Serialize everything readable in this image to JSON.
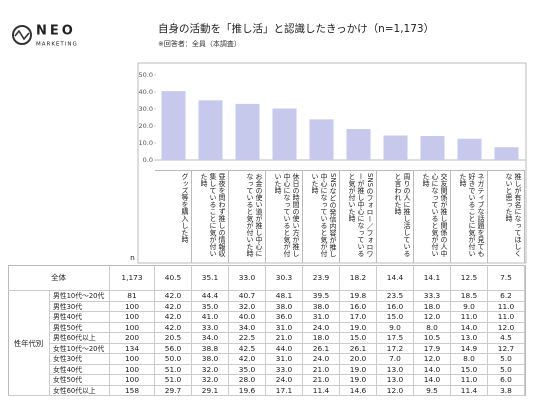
{
  "logo": {
    "name": "NEO",
    "sub": "MARKETING"
  },
  "chart_data": {
    "type": "bar",
    "title": "自身の活動を「推し活」と認識したきっかけ（n=1,173）",
    "subtitle": "※回答者：全員（本調査）",
    "categories": [
      "グッズ等を購入した時",
      "昼夜を問わず推しの情報収集していることに気が付いた時",
      "お金の使い道が推し中心になっていると気が付いた時",
      "休日の時間の使い方が推し中心になっていると気が付いた時",
      "SNSなどの発信内容が推し中心になっていると気が付いた時",
      "SNSのフォロー／フォロワーが推し中心になっていると気が付いた時",
      "周りの人に推し活していると言われた時",
      "交友関係が推し関係の人中心になっていると気が付いた時",
      "ネガティブな話題を見ても好きでいることに気が付いた時",
      "推しが有名になってほしくないと思った時"
    ],
    "values": [
      40.5,
      35.1,
      33.0,
      30.3,
      23.9,
      18.2,
      14.4,
      14.1,
      12.5,
      7.5
    ],
    "value_labels": [
      "40.5",
      "35.1",
      "33.0",
      "30.3",
      "23.9",
      "18.2",
      "14.4",
      "14.1",
      "12.5",
      "7.5"
    ],
    "color": "#c6c9ec",
    "ylim": [
      0,
      50
    ],
    "yticks": [
      {
        "value": 0,
        "label": "0.0"
      },
      {
        "value": 10,
        "label": "10.0"
      },
      {
        "value": 20,
        "label": "20.0"
      },
      {
        "value": 30,
        "label": "30.0"
      },
      {
        "value": 40,
        "label": "40.0"
      },
      {
        "value": 50,
        "label": "50.0"
      }
    ]
  },
  "table": {
    "n_header": "n",
    "total_label": "全体",
    "total_n": "1,173",
    "group_label": "性年代別",
    "rows": [
      {
        "label": "男性10代～20代",
        "n": "81",
        "values": [
          "42.0",
          "44.4",
          "40.7",
          "48.1",
          "39.5",
          "19.8",
          "23.5",
          "33.3",
          "18.5",
          "6.2"
        ]
      },
      {
        "label": "男性30代",
        "n": "100",
        "values": [
          "42.0",
          "35.0",
          "32.0",
          "38.0",
          "38.0",
          "16.0",
          "16.0",
          "18.0",
          "9.0",
          "11.0"
        ]
      },
      {
        "label": "男性40代",
        "n": "100",
        "values": [
          "42.0",
          "41.0",
          "40.0",
          "36.0",
          "31.0",
          "17.0",
          "15.0",
          "12.0",
          "11.0",
          "11.0"
        ]
      },
      {
        "label": "男性50代",
        "n": "100",
        "values": [
          "42.0",
          "33.0",
          "34.0",
          "31.0",
          "24.0",
          "19.0",
          "9.0",
          "8.0",
          "14.0",
          "12.0"
        ]
      },
      {
        "label": "男性60代以上",
        "n": "200",
        "values": [
          "20.5",
          "34.0",
          "22.5",
          "21.0",
          "18.0",
          "15.0",
          "17.5",
          "10.5",
          "13.0",
          "4.5"
        ]
      },
      {
        "label": "女性10代～20代",
        "n": "134",
        "values": [
          "56.0",
          "38.8",
          "42.5",
          "44.0",
          "26.1",
          "26.1",
          "17.2",
          "17.9",
          "14.9",
          "12.7"
        ]
      },
      {
        "label": "女性30代",
        "n": "100",
        "values": [
          "50.0",
          "38.0",
          "42.0",
          "31.0",
          "24.0",
          "20.0",
          "7.0",
          "12.0",
          "8.0",
          "5.0"
        ]
      },
      {
        "label": "女性40代",
        "n": "100",
        "values": [
          "51.0",
          "32.0",
          "35.0",
          "33.0",
          "21.0",
          "19.0",
          "13.0",
          "14.0",
          "15.0",
          "5.0"
        ]
      },
      {
        "label": "女性50代",
        "n": "100",
        "values": [
          "51.0",
          "32.0",
          "28.0",
          "24.0",
          "21.0",
          "19.0",
          "13.0",
          "14.0",
          "11.0",
          "6.0"
        ]
      },
      {
        "label": "女性60代以上",
        "n": "158",
        "values": [
          "29.7",
          "29.1",
          "19.6",
          "17.1",
          "11.4",
          "14.6",
          "12.0",
          "9.5",
          "11.4",
          "3.8"
        ]
      }
    ]
  }
}
